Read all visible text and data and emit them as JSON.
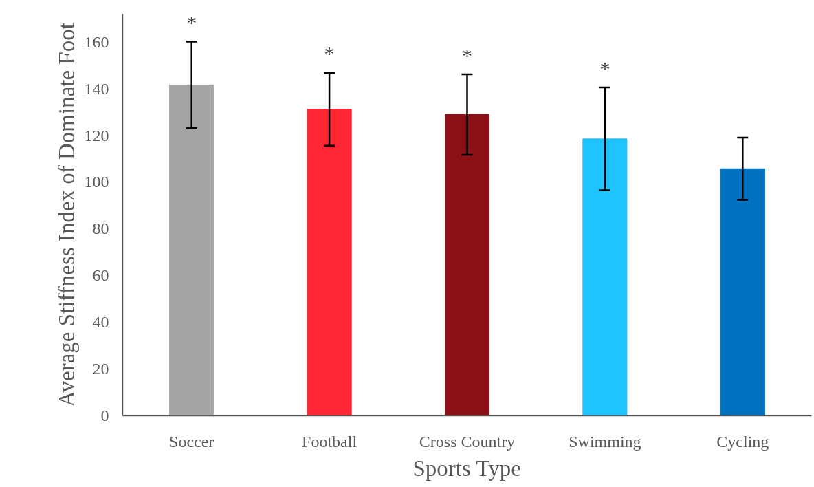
{
  "chart_data": {
    "type": "bar",
    "xlabel": "Sports Type",
    "ylabel": "Average Stiffness Index of Dominate Foot",
    "categories": [
      "Soccer",
      "Football",
      "Cross Country",
      "Swimming",
      "Cycling"
    ],
    "values": [
      141.7,
      131.3,
      129,
      118.6,
      105.8
    ],
    "errors": [
      18.5,
      15.6,
      17.2,
      22,
      13.3
    ],
    "colors": [
      "#a5a5a5",
      "#ff2733",
      "#8b1016",
      "#1ec3ff",
      "#0070c0"
    ],
    "ylim": [
      0,
      172
    ],
    "yticks": [
      0,
      20,
      40,
      60,
      80,
      100,
      120,
      140,
      160
    ],
    "grid": false,
    "annotations": [
      "*",
      "*",
      "*",
      "*"
    ]
  }
}
